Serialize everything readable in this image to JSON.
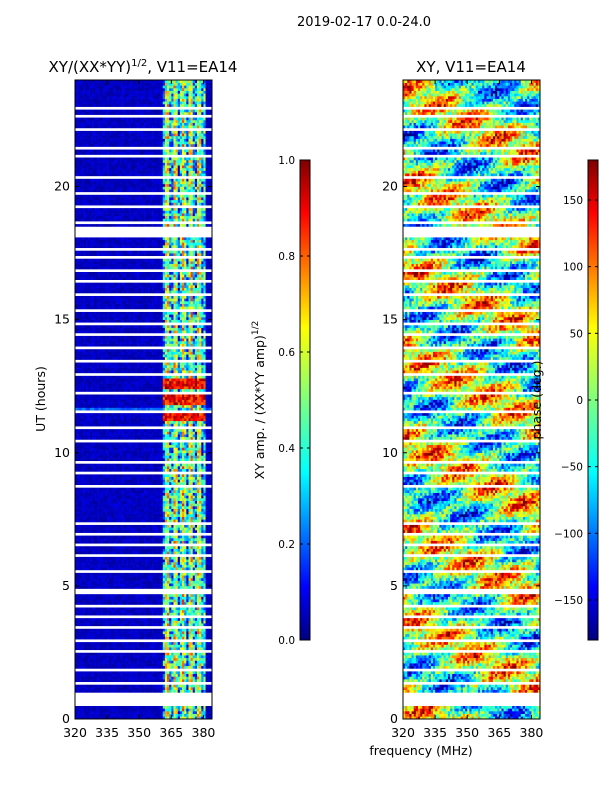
{
  "figure": {
    "suptitle": "2019-02-17 0.0-24.0",
    "shared_xlabel": "frequency (MHz)"
  },
  "colors": {
    "jet": [
      "#00007f",
      "#0000ff",
      "#007fff",
      "#00ffff",
      "#7fff7f",
      "#ffff00",
      "#ff7f00",
      "#ff0000",
      "#7f0000"
    ],
    "gap": "#ffffff",
    "axis": "#000000"
  },
  "chart_data": [
    {
      "type": "heatmap",
      "title": "XY/(XX*YY)",
      "title_exponent": "1/2",
      "title_suffix": ", V11=EA14",
      "xlabel": "",
      "ylabel": "UT (hours)",
      "xlim": [
        320,
        384
      ],
      "ylim": [
        0,
        24
      ],
      "xticks": [
        320,
        335,
        350,
        365,
        380
      ],
      "yticks": [
        0,
        5,
        10,
        15,
        20
      ],
      "colorbar": {
        "label": "XY amp. / (XX*YY amp)",
        "label_exponent": "1/2",
        "range": [
          0.0,
          1.0
        ],
        "ticks": [
          "0.0",
          "0.2",
          "0.4",
          "0.6",
          "0.8",
          "1.0"
        ],
        "tick_values": [
          0.0,
          0.2,
          0.4,
          0.6,
          0.8,
          1.0
        ]
      },
      "bright_band_MHz": [
        361,
        381
      ],
      "bright_hours": [
        11.4,
        12.0,
        12.6
      ]
    },
    {
      "type": "heatmap",
      "title": "XY, V11=EA14",
      "xlabel": "frequency (MHz)",
      "ylabel": "",
      "xlim": [
        320,
        384
      ],
      "ylim": [
        0,
        24
      ],
      "xticks": [
        320,
        335,
        350,
        365,
        380
      ],
      "yticks": [
        0,
        5,
        10,
        15,
        20
      ],
      "colorbar": {
        "label": "phase (deg.)",
        "range": [
          -180,
          180
        ],
        "ticks": [
          "−150",
          "−100",
          "−50",
          "0",
          "50",
          "100",
          "150"
        ],
        "tick_values": [
          -150,
          -100,
          -50,
          0,
          50,
          100,
          150
        ]
      }
    }
  ],
  "flagged_gaps_hours": [
    [
      0.5,
      1.0
    ],
    [
      1.3,
      1.38
    ],
    [
      1.85,
      1.92
    ],
    [
      2.5,
      2.56
    ],
    [
      2.95,
      3.02
    ],
    [
      3.4,
      3.46
    ],
    [
      3.85,
      3.92
    ],
    [
      4.25,
      4.3
    ],
    [
      4.75,
      4.9
    ],
    [
      5.55,
      5.6
    ],
    [
      6.1,
      6.16
    ],
    [
      6.55,
      6.62
    ],
    [
      6.9,
      6.98
    ],
    [
      7.35,
      7.42
    ],
    [
      8.7,
      8.75
    ],
    [
      9.2,
      9.3
    ],
    [
      9.6,
      9.68
    ],
    [
      10.4,
      10.45
    ],
    [
      10.95,
      11.02
    ],
    [
      11.55,
      11.6
    ],
    [
      12.2,
      12.26
    ],
    [
      12.9,
      12.96
    ],
    [
      13.4,
      13.48
    ],
    [
      13.9,
      13.96
    ],
    [
      14.4,
      14.5
    ],
    [
      14.85,
      14.93
    ],
    [
      15.35,
      15.4
    ],
    [
      15.9,
      15.96
    ],
    [
      16.4,
      16.47
    ],
    [
      16.85,
      16.92
    ],
    [
      17.3,
      17.37
    ],
    [
      17.6,
      17.66
    ],
    [
      18.1,
      18.5
    ],
    [
      18.6,
      18.66
    ],
    [
      19.2,
      19.34
    ],
    [
      19.7,
      19.8
    ],
    [
      20.35,
      20.42
    ],
    [
      21.1,
      21.17
    ],
    [
      21.45,
      21.52
    ],
    [
      22.1,
      22.16
    ],
    [
      22.6,
      22.7
    ],
    [
      22.9,
      23.0
    ]
  ]
}
